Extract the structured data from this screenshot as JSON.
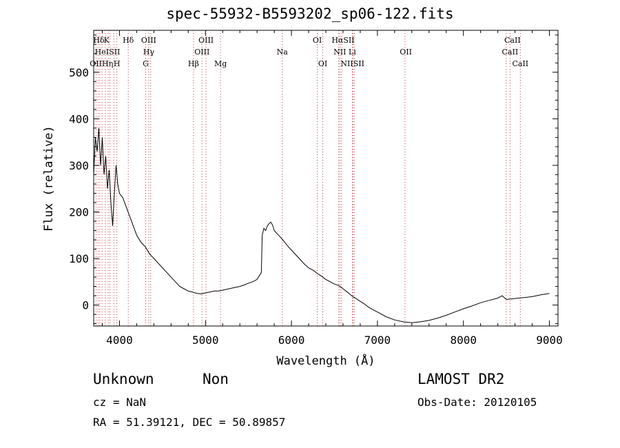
{
  "chart_data": {
    "type": "line",
    "title": "spec-55932-B5593202_sp06-122.fits",
    "xlabel": "Wavelength (Å)",
    "ylabel": "Flux (relative)",
    "xlim": [
      3700,
      9100
    ],
    "ylim": [
      -45,
      590
    ],
    "xticks": [
      4000,
      5000,
      6000,
      7000,
      8000,
      9000
    ],
    "yticks": [
      0,
      100,
      200,
      300,
      400,
      500
    ],
    "grid": false,
    "series": [
      {
        "x": [
          3700,
          3720,
          3740,
          3760,
          3780,
          3800,
          3820,
          3840,
          3860,
          3880,
          3900,
          3920,
          3940,
          3960,
          3980,
          4000,
          4040,
          4080,
          4120,
          4160,
          4200,
          4250,
          4300,
          4350,
          4400,
          4450,
          4500,
          4550,
          4600,
          4650,
          4700,
          4750,
          4800,
          4850,
          4900,
          4950,
          5000,
          5050,
          5100,
          5150,
          5200,
          5250,
          5300,
          5350,
          5400,
          5450,
          5500,
          5550,
          5600,
          5650,
          5660,
          5680,
          5700,
          5720,
          5740,
          5760,
          5780,
          5800,
          5850,
          5900,
          5950,
          6000,
          6050,
          6100,
          6150,
          6200,
          6250,
          6300,
          6350,
          6400,
          6450,
          6500,
          6550,
          6600,
          6650,
          6700,
          6750,
          6800,
          6850,
          6900,
          6950,
          7000,
          7100,
          7200,
          7300,
          7400,
          7500,
          7600,
          7700,
          7800,
          7900,
          8000,
          8100,
          8200,
          8300,
          8400,
          8450,
          8500,
          8600,
          8700,
          8800,
          8900,
          9000
        ],
        "y": [
          280,
          360,
          330,
          380,
          300,
          360,
          280,
          320,
          250,
          290,
          220,
          170,
          240,
          300,
          260,
          240,
          230,
          210,
          190,
          170,
          150,
          135,
          125,
          110,
          100,
          90,
          80,
          70,
          60,
          50,
          40,
          35,
          30,
          28,
          25,
          24,
          26,
          28,
          30,
          30,
          32,
          34,
          36,
          38,
          40,
          43,
          47,
          50,
          55,
          70,
          150,
          165,
          160,
          170,
          175,
          178,
          172,
          160,
          150,
          140,
          128,
          118,
          108,
          98,
          88,
          80,
          75,
          68,
          62,
          55,
          50,
          45,
          42,
          35,
          28,
          20,
          14,
          8,
          2,
          -5,
          -10,
          -15,
          -25,
          -32,
          -36,
          -38,
          -36,
          -33,
          -28,
          -22,
          -15,
          -8,
          -2,
          5,
          10,
          15,
          20,
          12,
          14,
          16,
          18,
          22,
          25
        ]
      }
    ],
    "line_markers": [
      {
        "label": "Hδ",
        "x": 3760,
        "row": 0,
        "color": "black"
      },
      {
        "label": "K",
        "x": 3850,
        "row": 0,
        "color": "black"
      },
      {
        "label": "Hδ",
        "x": 4102,
        "row": 0,
        "color": "black"
      },
      {
        "label": "OIII",
        "x": 4340,
        "row": 0,
        "color": "black"
      },
      {
        "label": "OIII",
        "x": 5007,
        "row": 0,
        "color": "black"
      },
      {
        "label": "OI",
        "x": 6300,
        "row": 0,
        "color": "black"
      },
      {
        "label": "HαSII",
        "x": 6600,
        "row": 0,
        "color": "black"
      },
      {
        "label": "CaII",
        "x": 8570,
        "row": 0,
        "color": "black"
      },
      {
        "label": "HeISII",
        "x": 3860,
        "row": 1,
        "color": "black"
      },
      {
        "label": "Hγ",
        "x": 4340,
        "row": 1,
        "color": "black"
      },
      {
        "label": "OIII",
        "x": 4960,
        "row": 1,
        "color": "black"
      },
      {
        "label": "Na",
        "x": 5893,
        "row": 1,
        "color": "black"
      },
      {
        "label": "NII Li",
        "x": 6620,
        "row": 1,
        "color": "black"
      },
      {
        "label": "OII",
        "x": 7330,
        "row": 1,
        "color": "black"
      },
      {
        "label": "CaII",
        "x": 8542,
        "row": 1,
        "color": "black"
      },
      {
        "label": "OIIHη",
        "x": 3790,
        "row": 2,
        "color": "black"
      },
      {
        "label": "H",
        "x": 3970,
        "row": 2,
        "color": "black"
      },
      {
        "label": "G",
        "x": 4305,
        "row": 2,
        "color": "black"
      },
      {
        "label": "Hβ",
        "x": 4861,
        "row": 2,
        "color": "black"
      },
      {
        "label": "Mg",
        "x": 5175,
        "row": 2,
        "color": "black"
      },
      {
        "label": "OI",
        "x": 6364,
        "row": 2,
        "color": "black"
      },
      {
        "label": "NIISII",
        "x": 6710,
        "row": 2,
        "color": "black"
      },
      {
        "label": "CaII",
        "x": 8662,
        "row": 2,
        "color": "black"
      }
    ],
    "marker_line_x": [
      3727,
      3750,
      3771,
      3797,
      3835,
      3869,
      3889,
      3934,
      3969,
      4102,
      4304,
      4341,
      4363,
      4861,
      4959,
      5007,
      5175,
      5893,
      6300,
      6364,
      6548,
      6563,
      6583,
      6708,
      6716,
      6731,
      7320,
      8498,
      8542,
      8662
    ]
  },
  "footer": {
    "object_class": "Unknown",
    "object_subclass": "Non",
    "survey": "LAMOST DR2",
    "redshift": "cz = NaN",
    "obs_date": "Obs-Date: 20120105",
    "coordinates": "RA =  51.39121, DEC =  50.89857"
  }
}
